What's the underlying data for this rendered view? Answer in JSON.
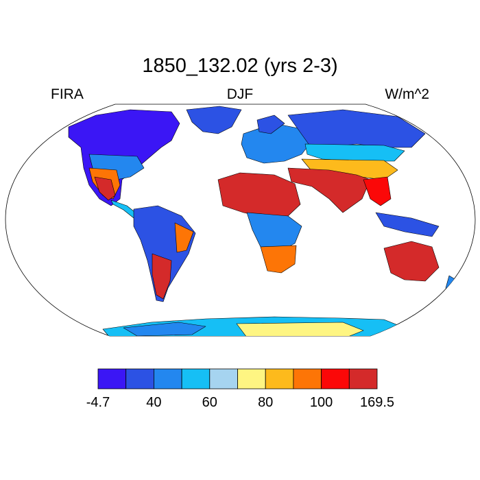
{
  "title": "1850_132.02 (yrs 2-3)",
  "left_label": "FIRA",
  "center_label": "DJF",
  "right_label": "W/m^2",
  "colorbar": {
    "colors": [
      "#3b16f5",
      "#2c52e4",
      "#2387ef",
      "#16bff5",
      "#a6d4f0",
      "#fef582",
      "#fdba1c",
      "#fd7506",
      "#fb0808",
      "#d42a2a"
    ],
    "tick_labels": [
      "-4.7",
      "40",
      "60",
      "80",
      "100",
      "169.5"
    ]
  }
}
